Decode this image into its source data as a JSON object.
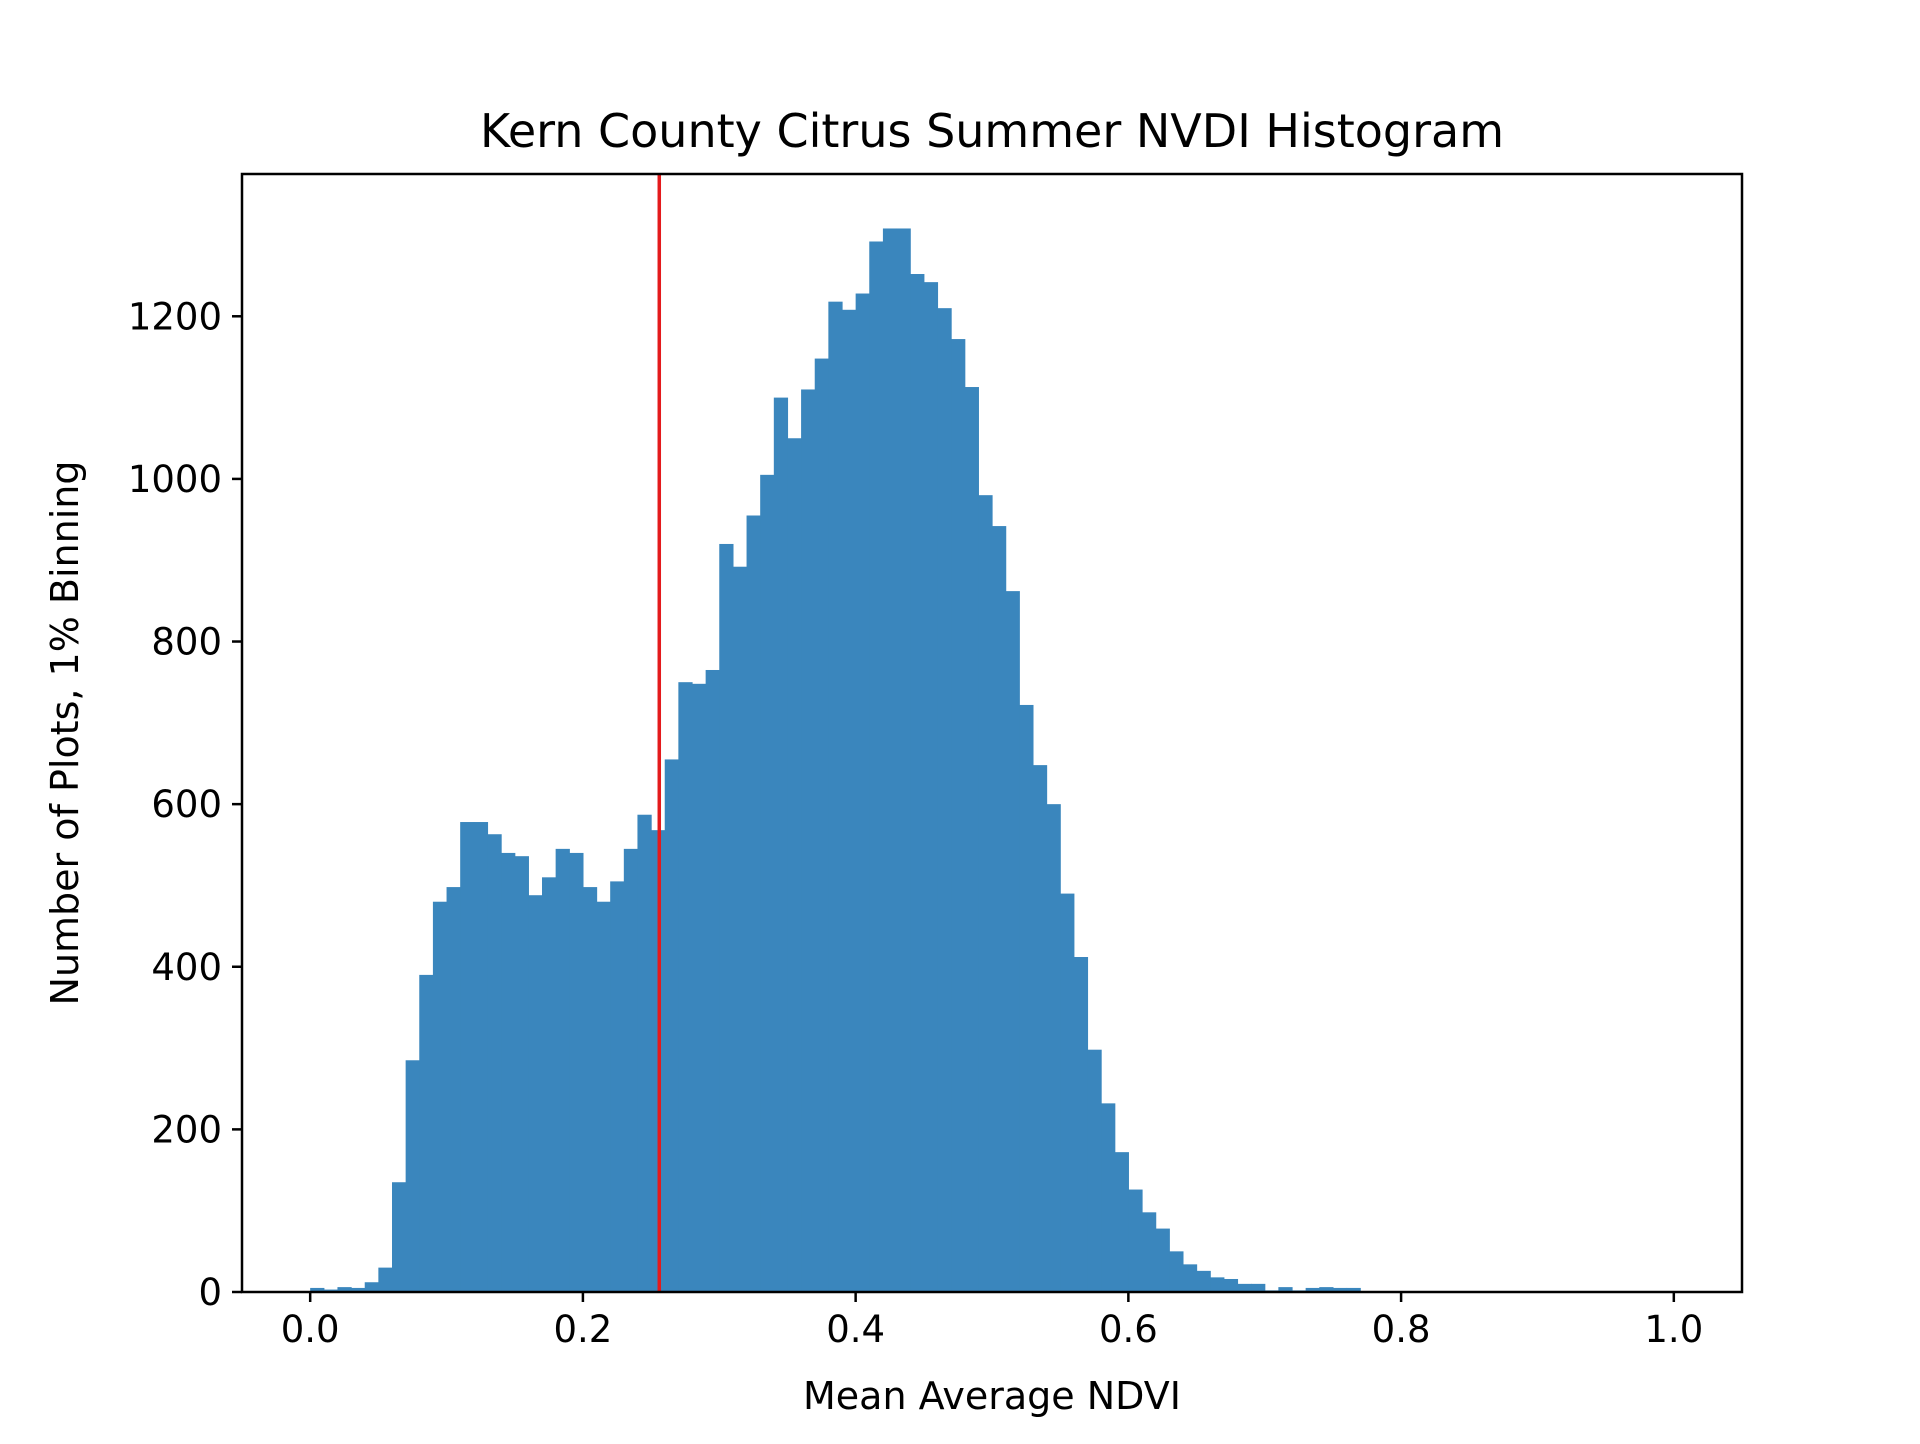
{
  "chart_data": {
    "type": "bar",
    "title": "Kern County Citrus Summer NVDI Histogram",
    "xlabel": "Mean Average NDVI",
    "ylabel": "Number of Plots, 1% Binning",
    "xlim": [
      -0.05,
      1.05
    ],
    "ylim": [
      0,
      1375
    ],
    "xticks": [
      0.0,
      0.2,
      0.4,
      0.6,
      0.8,
      1.0
    ],
    "xtick_labels": [
      "0.0",
      "0.2",
      "0.4",
      "0.6",
      "0.8",
      "1.0"
    ],
    "yticks": [
      0,
      200,
      400,
      600,
      800,
      1000,
      1200
    ],
    "ytick_labels": [
      "0",
      "200",
      "400",
      "600",
      "800",
      "1000",
      "1200"
    ],
    "bin_width": 0.01,
    "bins_start": 0.0,
    "values": [
      5,
      3,
      6,
      5,
      12,
      30,
      135,
      285,
      390,
      480,
      498,
      578,
      578,
      563,
      540,
      536,
      488,
      510,
      545,
      540,
      498,
      480,
      505,
      545,
      587,
      568,
      655,
      750,
      748,
      765,
      920,
      892,
      955,
      1005,
      1100,
      1050,
      1110,
      1148,
      1218,
      1208,
      1228,
      1292,
      1308,
      1308,
      1252,
      1242,
      1210,
      1172,
      1113,
      980,
      942,
      862,
      722,
      648,
      600,
      490,
      412,
      298,
      232,
      172,
      126,
      98,
      78,
      50,
      34,
      26,
      18,
      16,
      10,
      10,
      2,
      6,
      2,
      5,
      6,
      5,
      5,
      0,
      0,
      0,
      0,
      0,
      0,
      0,
      0,
      0,
      0,
      0,
      0,
      0,
      0,
      0,
      0,
      0,
      0,
      0,
      0,
      0,
      0,
      0
    ],
    "vline": {
      "x": 0.256,
      "color": "#e41a1c"
    },
    "bar_color": "#3a86bd",
    "grid": false,
    "legend": "none"
  }
}
